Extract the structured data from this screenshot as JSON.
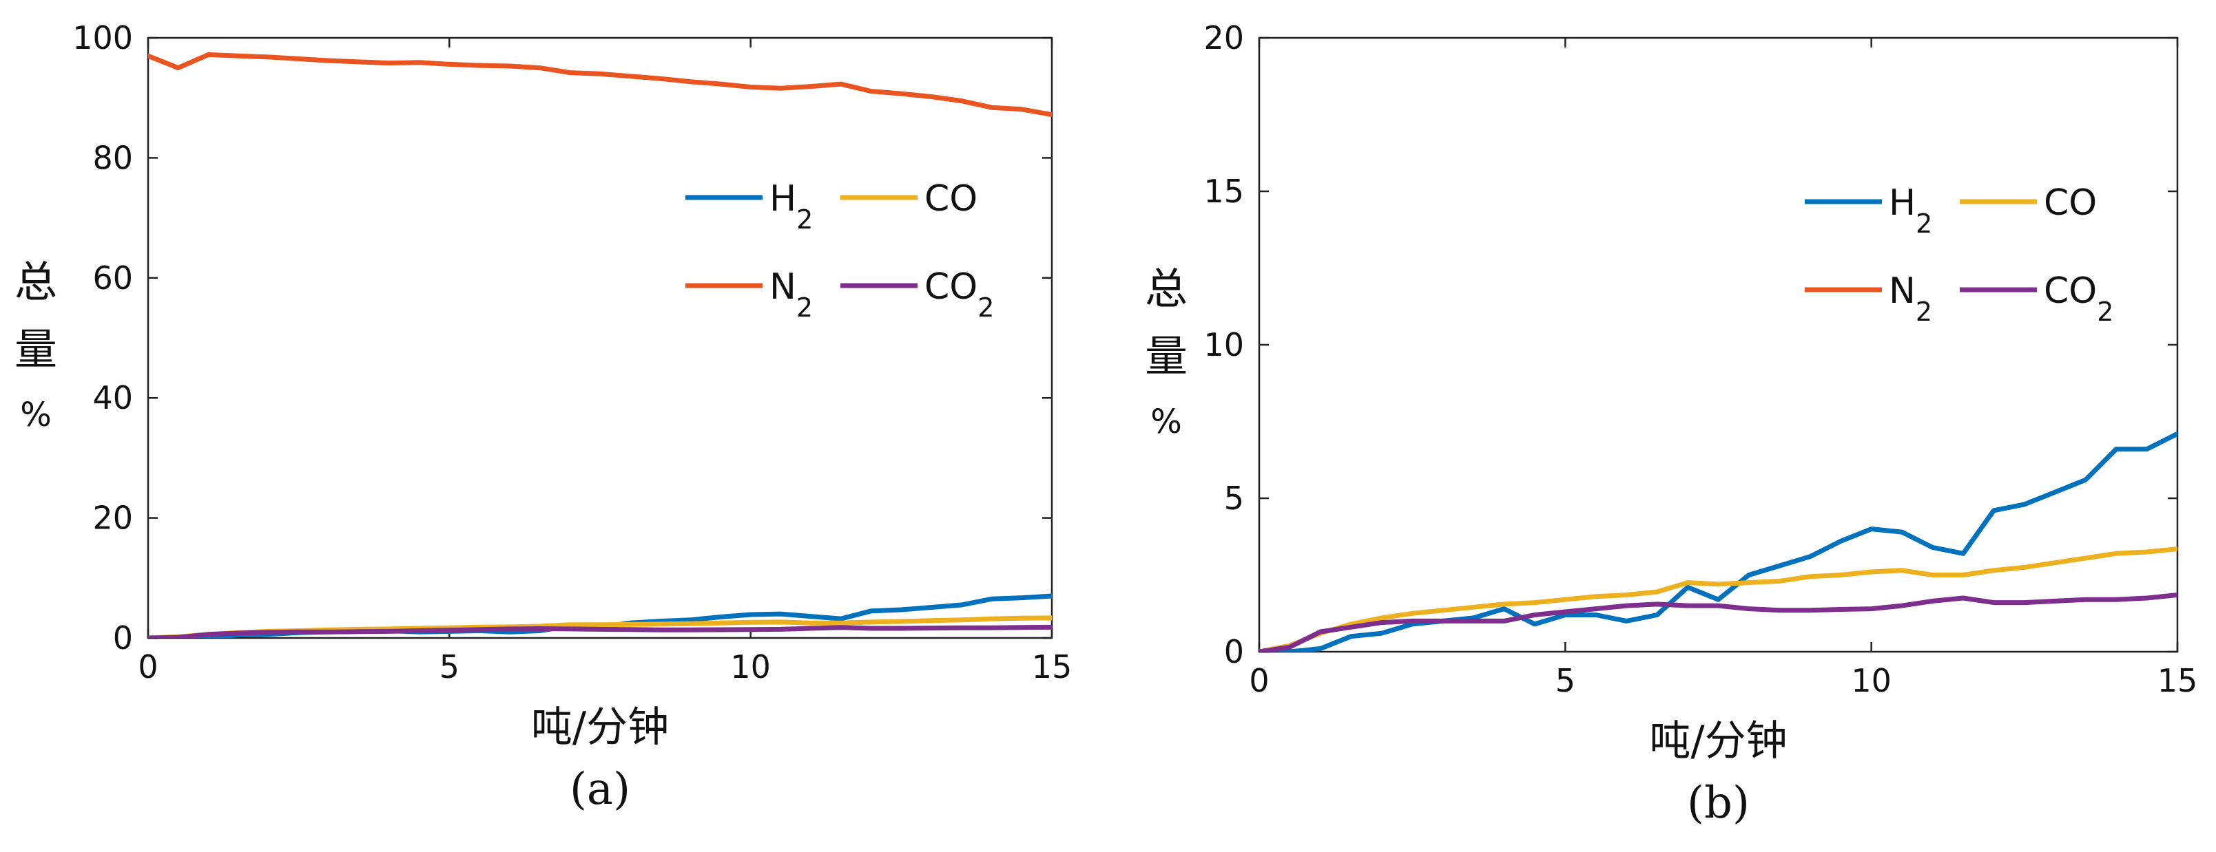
{
  "chart_data": [
    {
      "type": "line",
      "panel_label": "(a)",
      "xlabel": "吨/分钟",
      "ylabel": "总量",
      "ylabel_unit": "%",
      "xlim": [
        0,
        15
      ],
      "ylim": [
        0,
        100
      ],
      "xticks": [
        0,
        5,
        10,
        15
      ],
      "yticks": [
        0,
        20,
        40,
        60,
        80,
        100
      ],
      "grid": false,
      "legend_position": "upper-right",
      "legend": [
        {
          "series": 0,
          "base": "H",
          "sub": "2"
        },
        {
          "series": 1,
          "base": "CO",
          "sub": ""
        },
        {
          "series": 2,
          "base": "N",
          "sub": "2"
        },
        {
          "series": 3,
          "base": "CO",
          "sub": "2"
        }
      ],
      "series": [
        {
          "name": "H2",
          "color": "#0072BD",
          "x": [
            0,
            0.5,
            1,
            1.5,
            2,
            2.5,
            3,
            3.5,
            4,
            4.5,
            5,
            5.5,
            6,
            6.5,
            7,
            7.5,
            8,
            8.5,
            9,
            9.5,
            10,
            10.5,
            11,
            11.5,
            12,
            12.5,
            13,
            13.5,
            14,
            14.5,
            15
          ],
          "y": [
            0,
            0,
            0.1,
            0.5,
            0.6,
            0.9,
            1.0,
            1.1,
            1.2,
            1.0,
            1.1,
            1.2,
            1.0,
            1.2,
            2.0,
            1.8,
            2.5,
            2.8,
            3.0,
            3.5,
            3.9,
            4.0,
            3.6,
            3.2,
            4.5,
            4.7,
            5.1,
            5.5,
            6.5,
            6.7,
            7.0
          ]
        },
        {
          "name": "CO",
          "color": "#EDB120",
          "x": [
            0,
            0.5,
            1,
            1.5,
            2,
            2.5,
            3,
            3.5,
            4,
            4.5,
            5,
            5.5,
            6,
            6.5,
            7,
            7.5,
            8,
            8.5,
            9,
            9.5,
            10,
            10.5,
            11,
            11.5,
            12,
            12.5,
            13,
            13.5,
            14,
            14.5,
            15
          ],
          "y": [
            0,
            0.2,
            0.6,
            0.9,
            1.1,
            1.2,
            1.35,
            1.45,
            1.5,
            1.6,
            1.7,
            1.8,
            1.85,
            1.95,
            2.2,
            2.2,
            2.25,
            2.3,
            2.4,
            2.5,
            2.6,
            2.65,
            2.5,
            2.5,
            2.65,
            2.75,
            2.9,
            3.0,
            3.2,
            3.3,
            3.35
          ]
        },
        {
          "name": "N2",
          "color": "#E95420",
          "x": [
            0,
            0.5,
            1,
            1.5,
            2,
            2.5,
            3,
            3.5,
            4,
            4.5,
            5,
            5.5,
            6,
            6.5,
            7,
            7.5,
            8,
            8.5,
            9,
            9.5,
            10,
            10.5,
            11,
            11.5,
            12,
            12.5,
            13,
            13.5,
            14,
            14.5,
            15
          ],
          "y": [
            97,
            95,
            97.2,
            97,
            96.8,
            96.5,
            96.2,
            96,
            95.8,
            95.9,
            95.6,
            95.4,
            95.3,
            95,
            94.2,
            94,
            93.6,
            93.2,
            92.7,
            92.3,
            91.8,
            91.6,
            91.9,
            92.3,
            91.1,
            90.7,
            90.2,
            89.5,
            88.4,
            88.1,
            87.2
          ]
        },
        {
          "name": "CO2",
          "color": "#7E2F8E",
          "x": [
            0,
            0.5,
            1,
            1.5,
            2,
            2.5,
            3,
            3.5,
            4,
            4.5,
            5,
            5.5,
            6,
            6.5,
            7,
            7.5,
            8,
            8.5,
            9,
            9.5,
            10,
            10.5,
            11,
            11.5,
            12,
            12.5,
            13,
            13.5,
            14,
            14.5,
            15
          ],
          "y": [
            0,
            0.1,
            0.6,
            0.8,
            0.95,
            1.0,
            1.0,
            1.05,
            1.1,
            1.2,
            1.3,
            1.4,
            1.5,
            1.55,
            1.5,
            1.45,
            1.4,
            1.35,
            1.35,
            1.38,
            1.4,
            1.45,
            1.6,
            1.75,
            1.6,
            1.6,
            1.65,
            1.7,
            1.7,
            1.75,
            1.8
          ]
        }
      ]
    },
    {
      "type": "line",
      "panel_label": "(b)",
      "xlabel": "吨/分钟",
      "ylabel": "总量",
      "ylabel_unit": "%",
      "xlim": [
        0,
        15
      ],
      "ylim": [
        0,
        20
      ],
      "xticks": [
        0,
        5,
        10,
        15
      ],
      "yticks": [
        0,
        5,
        10,
        15,
        20
      ],
      "grid": false,
      "legend_position": "upper-right",
      "legend": [
        {
          "series": 0,
          "base": "H",
          "sub": "2"
        },
        {
          "series": 1,
          "base": "CO",
          "sub": ""
        },
        {
          "series": 2,
          "base": "N",
          "sub": "2"
        },
        {
          "series": 3,
          "base": "CO",
          "sub": "2"
        }
      ],
      "series": [
        {
          "name": "H2",
          "color": "#0072BD",
          "x": [
            0,
            0.5,
            1,
            1.5,
            2,
            2.5,
            3,
            3.5,
            4,
            4.5,
            5,
            5.5,
            6,
            6.5,
            7,
            7.5,
            8,
            8.5,
            9,
            9.5,
            10,
            10.5,
            11,
            11.5,
            12,
            12.5,
            13,
            13.5,
            14,
            14.5,
            15
          ],
          "y": [
            0,
            0,
            0.1,
            0.5,
            0.6,
            0.9,
            1.0,
            1.1,
            1.4,
            0.9,
            1.2,
            1.2,
            1.0,
            1.2,
            2.1,
            1.7,
            2.5,
            2.8,
            3.1,
            3.6,
            4.0,
            3.9,
            3.4,
            3.2,
            4.6,
            4.8,
            5.2,
            5.6,
            6.6,
            6.6,
            7.1
          ]
        },
        {
          "name": "CO",
          "color": "#EDB120",
          "x": [
            0,
            0.5,
            1,
            1.5,
            2,
            2.5,
            3,
            3.5,
            4,
            4.5,
            5,
            5.5,
            6,
            6.5,
            7,
            7.5,
            8,
            8.5,
            9,
            9.5,
            10,
            10.5,
            11,
            11.5,
            12,
            12.5,
            13,
            13.5,
            14,
            14.5,
            15
          ],
          "y": [
            0,
            0.2,
            0.6,
            0.9,
            1.1,
            1.25,
            1.35,
            1.45,
            1.55,
            1.6,
            1.7,
            1.8,
            1.85,
            1.95,
            2.25,
            2.2,
            2.25,
            2.3,
            2.45,
            2.5,
            2.6,
            2.65,
            2.5,
            2.5,
            2.65,
            2.75,
            2.9,
            3.05,
            3.2,
            3.25,
            3.35
          ]
        },
        {
          "name": "N2",
          "color": "#E95420",
          "x": [],
          "y": []
        },
        {
          "name": "CO2",
          "color": "#7E2F8E",
          "x": [
            0,
            0.5,
            1,
            1.5,
            2,
            2.5,
            3,
            3.5,
            4,
            4.5,
            5,
            5.5,
            6,
            6.5,
            7,
            7.5,
            8,
            8.5,
            9,
            9.5,
            10,
            10.5,
            11,
            11.5,
            12,
            12.5,
            13,
            13.5,
            14,
            14.5,
            15
          ],
          "y": [
            0,
            0.15,
            0.65,
            0.8,
            0.95,
            1.0,
            1.0,
            1.0,
            1.0,
            1.2,
            1.3,
            1.4,
            1.5,
            1.55,
            1.5,
            1.5,
            1.4,
            1.35,
            1.35,
            1.38,
            1.4,
            1.5,
            1.65,
            1.75,
            1.6,
            1.6,
            1.65,
            1.7,
            1.7,
            1.75,
            1.85
          ]
        }
      ]
    }
  ]
}
